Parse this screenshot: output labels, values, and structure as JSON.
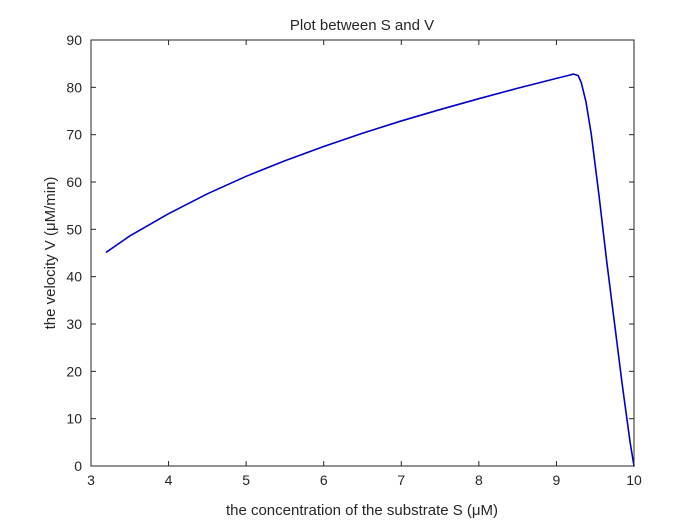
{
  "chart_data": {
    "type": "line",
    "title": "Plot between S and V",
    "xlabel": "the concentration of the substrate S (μM)",
    "ylabel": "the velocity V (μM/min)",
    "xlim": [
      3,
      10
    ],
    "ylim": [
      0,
      90
    ],
    "xticks": [
      "3",
      "4",
      "5",
      "6",
      "7",
      "8",
      "9",
      "10"
    ],
    "yticks": [
      "0",
      "10",
      "20",
      "30",
      "40",
      "50",
      "60",
      "70",
      "80",
      "90"
    ],
    "grid": false,
    "legend": false,
    "series": [
      {
        "color": "#0000c8",
        "x": [
          3.2,
          3.5,
          4.0,
          4.5,
          5.0,
          5.5,
          6.0,
          6.5,
          7.0,
          7.5,
          8.0,
          8.5,
          9.0,
          9.15,
          9.22,
          9.28,
          9.32,
          9.38,
          9.45,
          9.55,
          9.65,
          9.75,
          9.85,
          9.95,
          10.0
        ],
        "y": [
          45.2,
          48.6,
          53.3,
          57.5,
          61.2,
          64.5,
          67.5,
          70.3,
          72.9,
          75.3,
          77.6,
          79.8,
          81.9,
          82.5,
          82.8,
          82.5,
          81.0,
          77.0,
          70.0,
          57.0,
          43.0,
          30.0,
          17.0,
          5.0,
          0.0
        ]
      }
    ]
  }
}
